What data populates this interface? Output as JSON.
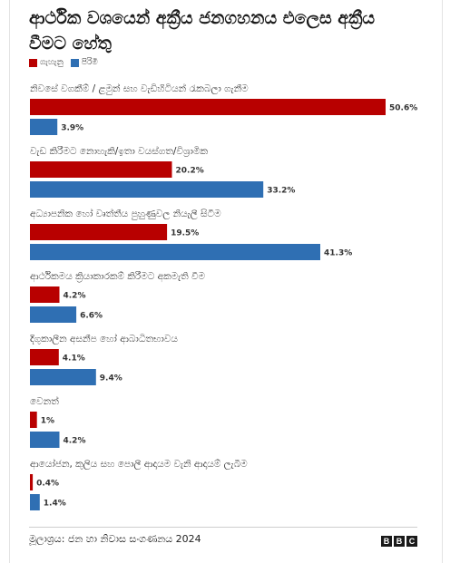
{
  "title": "ආර්ථික වශයෙන් අක්‍රීය ජනගහනය එලෙස අක්‍රීය වීමට හේතු",
  "legend": {
    "female_label": "ගැහැනු",
    "male_label": "පිරිමි"
  },
  "colors": {
    "female": "#b80000",
    "male": "#2f6fb3"
  },
  "source": "මූලාශ්‍රය: ජන හා නිවාස සංගණනය 2024",
  "logo": [
    "B",
    "B",
    "C"
  ],
  "chart_data": {
    "type": "bar",
    "orientation": "horizontal",
    "categories": [
      "නිවසේ වගකීම් / ළමුන් සහ වැඩිහිටියන් රැකබලා ගැනීම",
      "වැඩ කිරීමට නොහැකි/ඉතා වයස්ගත/විශ්‍රාමික",
      "අධ්‍යාපනික හෝ වෘත්තීය පුහුණුවල නියැලී සිටීම",
      "ආර්ථිකමය ක්‍රියාකාරකම් කිරීමට අකමැති වීම",
      "දිගුකාලීන අසනීප හෝ ආබාධිතභාවය",
      "වෙනත්",
      "ආයෝජන, කුලිය සහ පොලී ආදායම වැනි ආදායම් ලැබීම"
    ],
    "series": [
      {
        "name": "ගැහැනු",
        "values": [
          50.6,
          20.2,
          19.5,
          4.2,
          4.1,
          1,
          0.4
        ],
        "labels": [
          "50.6%",
          "20.2%",
          "19.5%",
          "4.2%",
          "4.1%",
          "1%",
          "0.4%"
        ]
      },
      {
        "name": "පිරිමි",
        "values": [
          3.9,
          33.2,
          41.3,
          6.6,
          9.4,
          4.2,
          1.4
        ],
        "labels": [
          "3.9%",
          "33.2%",
          "41.3%",
          "6.6%",
          "9.4%",
          "4.2%",
          "1.4%"
        ]
      }
    ],
    "unit": "%",
    "xlim": [
      0,
      50.6
    ],
    "grid": false,
    "legend_position": "top-left"
  }
}
